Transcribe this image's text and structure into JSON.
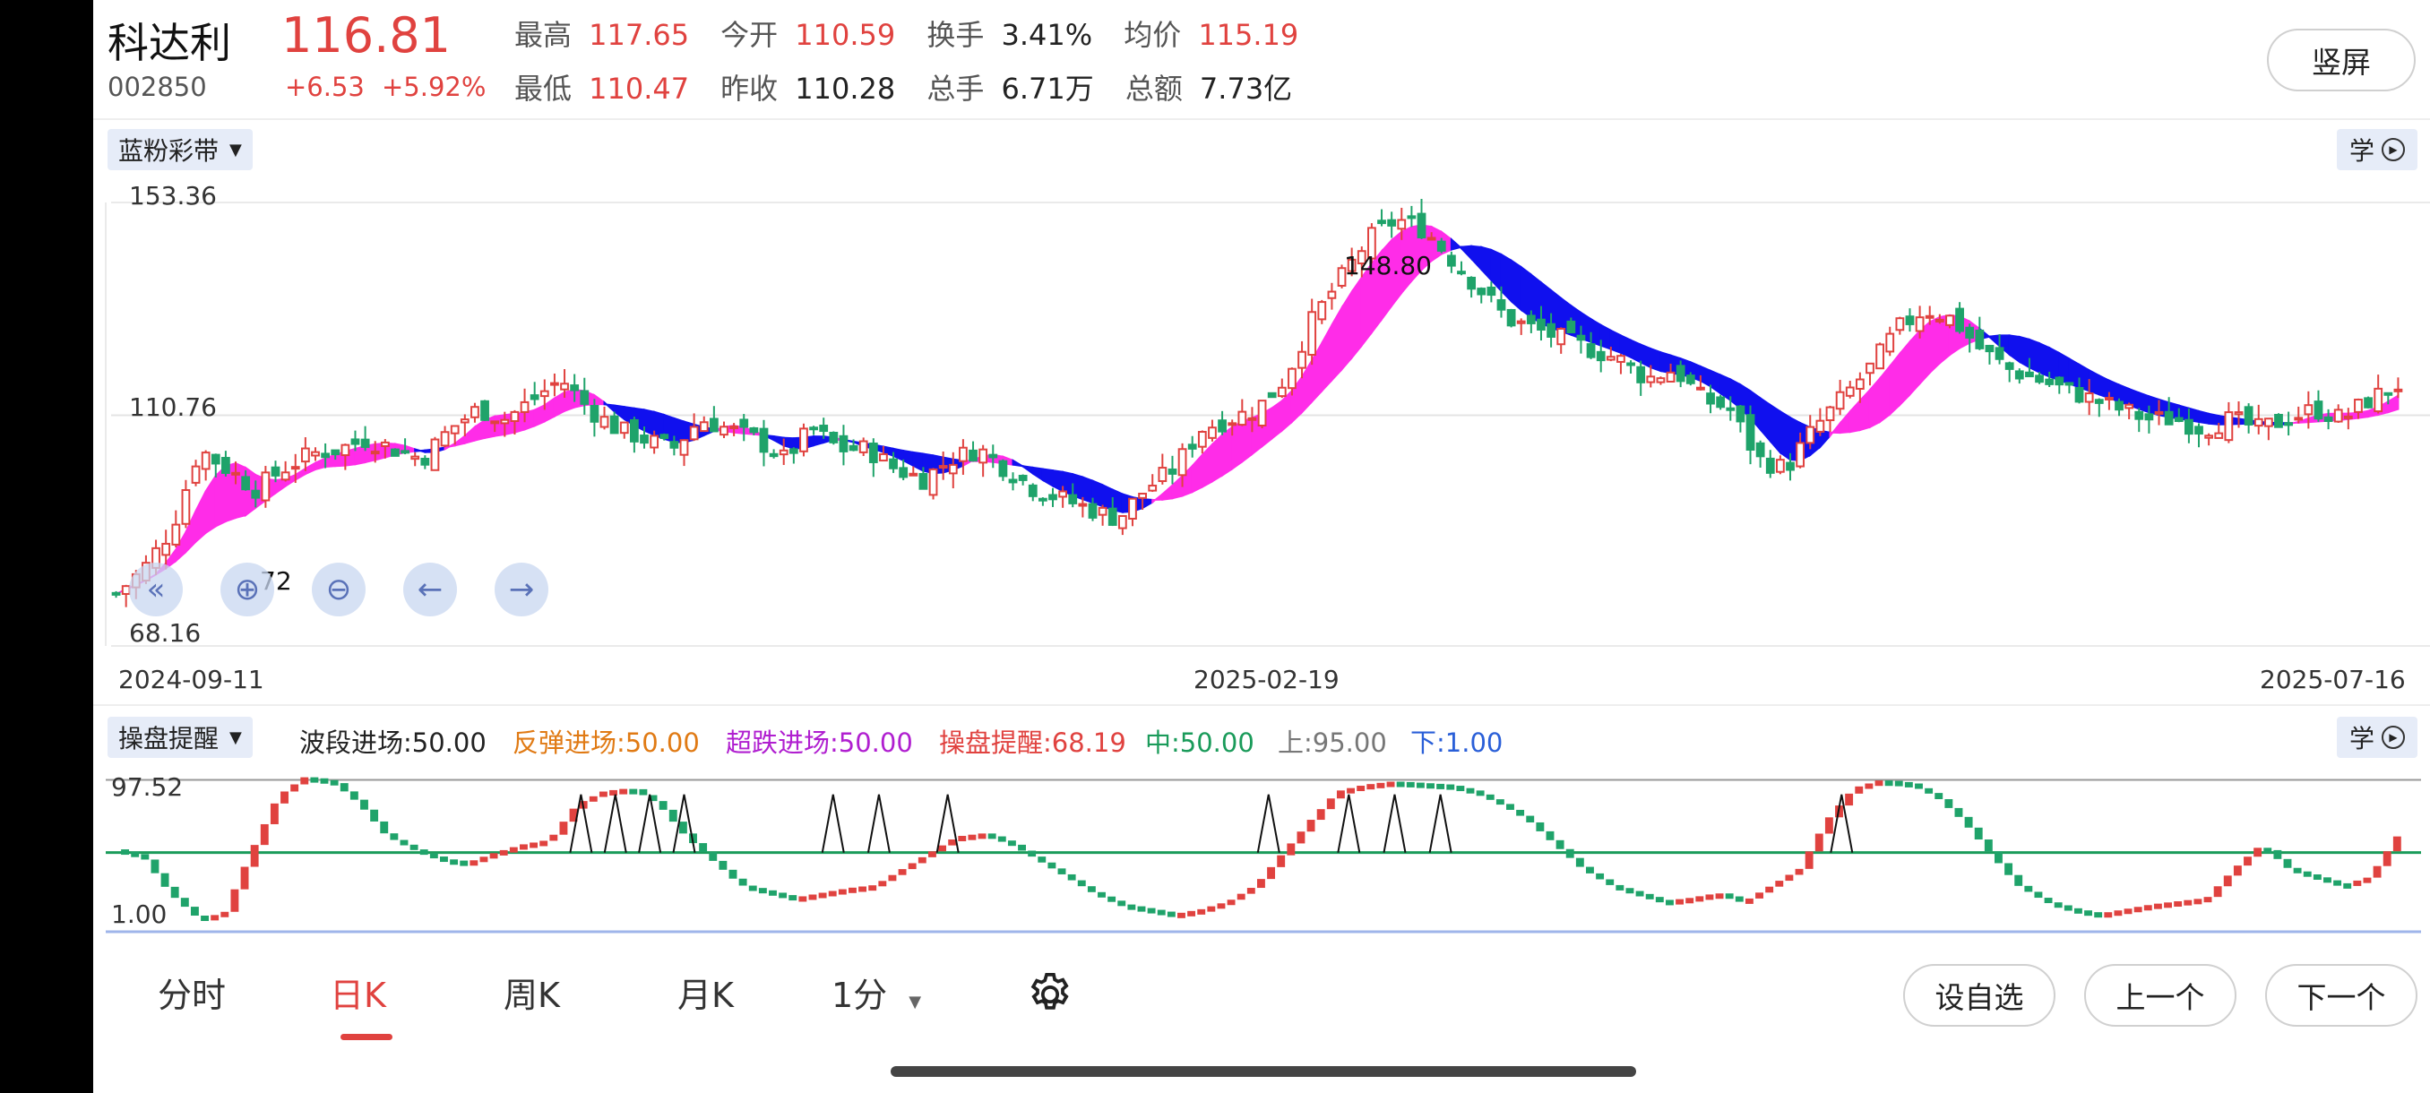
{
  "header": {
    "name": "科达利",
    "code": "002850",
    "price": "116.81",
    "change": "+6.53",
    "change_pct": "+5.92%",
    "quotes_row1": [
      {
        "label": "最高",
        "value": "117.65",
        "color": "#e0423f"
      },
      {
        "label": "今开",
        "value": "110.59",
        "color": "#e0423f"
      },
      {
        "label": "换手",
        "value": "3.41%",
        "color": "#222222"
      },
      {
        "label": "均价",
        "value": "115.19",
        "color": "#e0423f"
      }
    ],
    "quotes_row2": [
      {
        "label": "最低",
        "value": "110.47",
        "color": "#e0423f"
      },
      {
        "label": "昨收",
        "value": "110.28",
        "color": "#222222"
      },
      {
        "label": "总手",
        "value": "6.71万",
        "color": "#222222"
      },
      {
        "label": "总额",
        "value": "7.73亿",
        "color": "#222222"
      }
    ],
    "portrait_button": "竖屏"
  },
  "main_chart": {
    "indicator": "蓝粉彩带",
    "learn": "学",
    "y_top": "153.36",
    "y_mid": "110.76",
    "y_bottom": "68.16",
    "marker_high": "148.80",
    "marker_low": "72",
    "dates": [
      "2024-09-11",
      "2025-02-19",
      "2025-07-16"
    ],
    "colors": {
      "up": "#e0423f",
      "down": "#1fa36a",
      "band_up": "#ff2ce8",
      "band_down": "#1010ee"
    }
  },
  "chart_data": [
    {
      "type": "candlestick",
      "title": "",
      "ylim": [
        68.16,
        153.36
      ],
      "y_ticks": [
        "153.36",
        "110.76",
        "68.16"
      ],
      "x_ticks": [
        "2024-09-11",
        "2025-02-19",
        "2025-07-16"
      ],
      "annotations": [
        "148.80",
        "72"
      ],
      "close_approx": [
        75,
        80,
        88,
        104,
        100,
        96,
        100,
        103,
        104,
        106,
        104,
        102,
        108,
        112,
        110,
        114,
        118,
        112,
        108,
        106,
        104,
        110,
        108,
        106,
        102,
        108,
        104,
        104,
        100,
        98,
        102,
        104,
        100,
        96,
        94,
        92,
        90,
        96,
        100,
        108,
        110,
        112,
        118,
        130,
        138,
        146,
        150,
        148,
        142,
        136,
        130,
        128,
        126,
        124,
        122,
        118,
        120,
        114,
        112,
        102,
        100,
        108,
        114,
        120,
        128,
        132,
        130,
        124,
        120,
        118,
        116,
        114,
        112,
        110,
        110,
        108,
        110,
        108,
        110,
        112,
        110,
        114,
        116.81
      ]
    },
    {
      "type": "line",
      "title": "",
      "ylim": [
        1.0,
        97.52
      ],
      "y_ticks": [
        "97.52",
        "1.00"
      ],
      "reference_lines": {
        "中": 50.0,
        "上": 95.0,
        "下": 1.0
      },
      "values_approx": [
        52,
        48,
        25,
        10,
        12,
        50,
        85,
        97,
        94,
        80,
        60,
        52,
        46,
        44,
        50,
        55,
        58,
        80,
        88,
        90,
        80,
        60,
        45,
        30,
        26,
        22,
        25,
        28,
        30,
        40,
        50,
        60,
        62,
        55,
        45,
        35,
        25,
        18,
        15,
        12,
        15,
        20,
        30,
        50,
        70,
        88,
        92,
        94,
        93,
        92,
        88,
        80,
        70,
        55,
        40,
        30,
        25,
        20,
        22,
        25,
        20,
        30,
        40,
        70,
        90,
        95,
        93,
        85,
        70,
        50,
        30,
        20,
        15,
        12,
        15,
        18,
        20,
        22,
        40,
        55,
        40,
        35,
        30,
        35,
        60
      ]
    }
  ],
  "sub_chart": {
    "indicator": "操盘提醒",
    "learn": "学",
    "legend": [
      {
        "text": "波段进场:50.00",
        "color": "#222222"
      },
      {
        "text": "反弹进场:50.00",
        "color": "#e07a14"
      },
      {
        "text": "超跌进场:50.00",
        "color": "#b01fd0"
      },
      {
        "text": "操盘提醒:68.19",
        "color": "#e0423f"
      },
      {
        "text": "中:50.00",
        "color": "#1a9b5a"
      },
      {
        "text": "上:95.00",
        "color": "#777777"
      },
      {
        "text": "下:1.00",
        "color": "#2a5fd8"
      }
    ],
    "y_top": "97.52",
    "y_bottom": "1.00"
  },
  "bottom_tabs": {
    "items": [
      "分时",
      "日K",
      "周K",
      "月K",
      "1分"
    ],
    "active": 1,
    "buttons": [
      "设自选",
      "上一个",
      "下一个"
    ]
  },
  "icons": [
    "caret-down-icon",
    "play-circle-icon",
    "double-chevron-left-icon",
    "zoom-in-icon",
    "zoom-out-icon",
    "arrow-left-icon",
    "arrow-right-icon",
    "gear-icon"
  ]
}
